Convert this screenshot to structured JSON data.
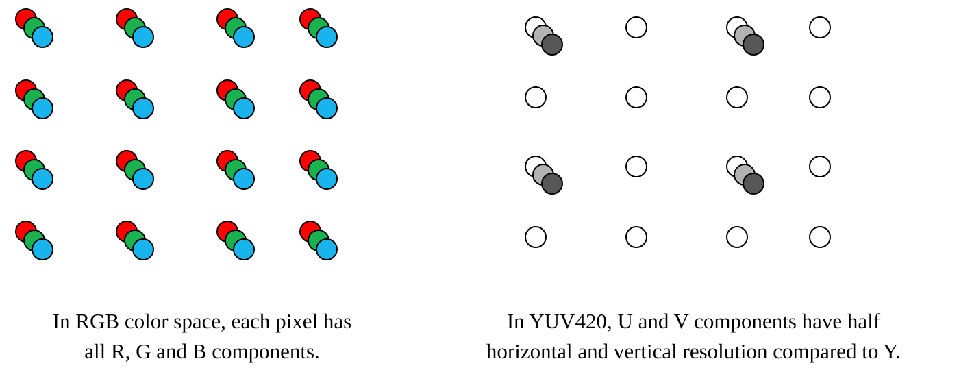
{
  "colors": {
    "red": "#ff0000",
    "green": "#1ab14f",
    "blue": "#19b4ee",
    "y_white": "#ffffff",
    "u_gray": "#b2b2b2",
    "v_dark": "#575757",
    "outline": "#000000",
    "background": "#ffffff"
  },
  "rgb_panel": {
    "rows": 4,
    "cols": 4,
    "components": [
      "R",
      "G",
      "B"
    ],
    "caption_line1": "In RGB color space, each pixel has",
    "caption_line2": "all R, G and B components."
  },
  "yuv_panel": {
    "rows": 4,
    "cols": 4,
    "chroma_subsampling": "4:2:0",
    "components": [
      "Y",
      "U",
      "V"
    ],
    "caption_line1": "In YUV420, U and V components have half",
    "caption_line2": "horizontal and vertical resolution compared to Y."
  }
}
